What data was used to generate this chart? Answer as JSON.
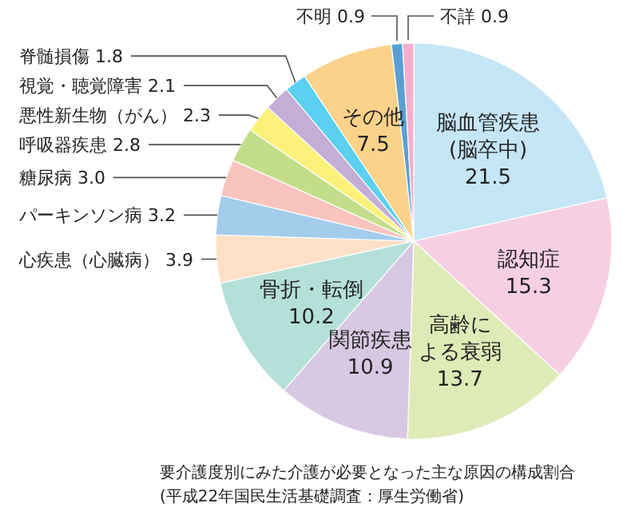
{
  "chart_data": {
    "type": "pie",
    "categories": [
      "脳血管疾患(脳卒中)",
      "認知症",
      "高齢による衰弱",
      "関節疾患",
      "骨折・転倒",
      "心疾患（心臓病）",
      "パーキンソン病",
      "糖尿病",
      "呼吸器疾患",
      "悪性新生物（がん）",
      "視覚・聴覚障害",
      "脊髄損傷",
      "その他",
      "不明",
      "不詳"
    ],
    "values": [
      21.5,
      15.3,
      13.7,
      10.9,
      10.2,
      3.9,
      3.2,
      3.0,
      2.8,
      2.3,
      2.1,
      1.8,
      7.5,
      0.9,
      0.9
    ],
    "value_labels": [
      "21.5",
      "15.3",
      "13.7",
      "10.9",
      "10.2",
      "3.9",
      "3.2",
      "3.0",
      "2.8",
      "2.3",
      "2.1",
      "1.8",
      "7.5",
      "0.9",
      "0.9"
    ],
    "colors": [
      "#c5e6f7",
      "#f7cfe3",
      "#dfebb7",
      "#d9c8e3",
      "#b5e0d9",
      "#fde0c5",
      "#a3cdeb",
      "#f8c4bd",
      "#c3de8a",
      "#fbf17a",
      "#c4aed6",
      "#5bd0f0",
      "#fbd28a",
      "#5a9fd4",
      "#f5aed0"
    ],
    "annotations": [
      "要介護度別にみた介護が必要となった主な原因の構成割合",
      "(平成22年国民生活基礎調査：厚生労働省)"
    ]
  }
}
